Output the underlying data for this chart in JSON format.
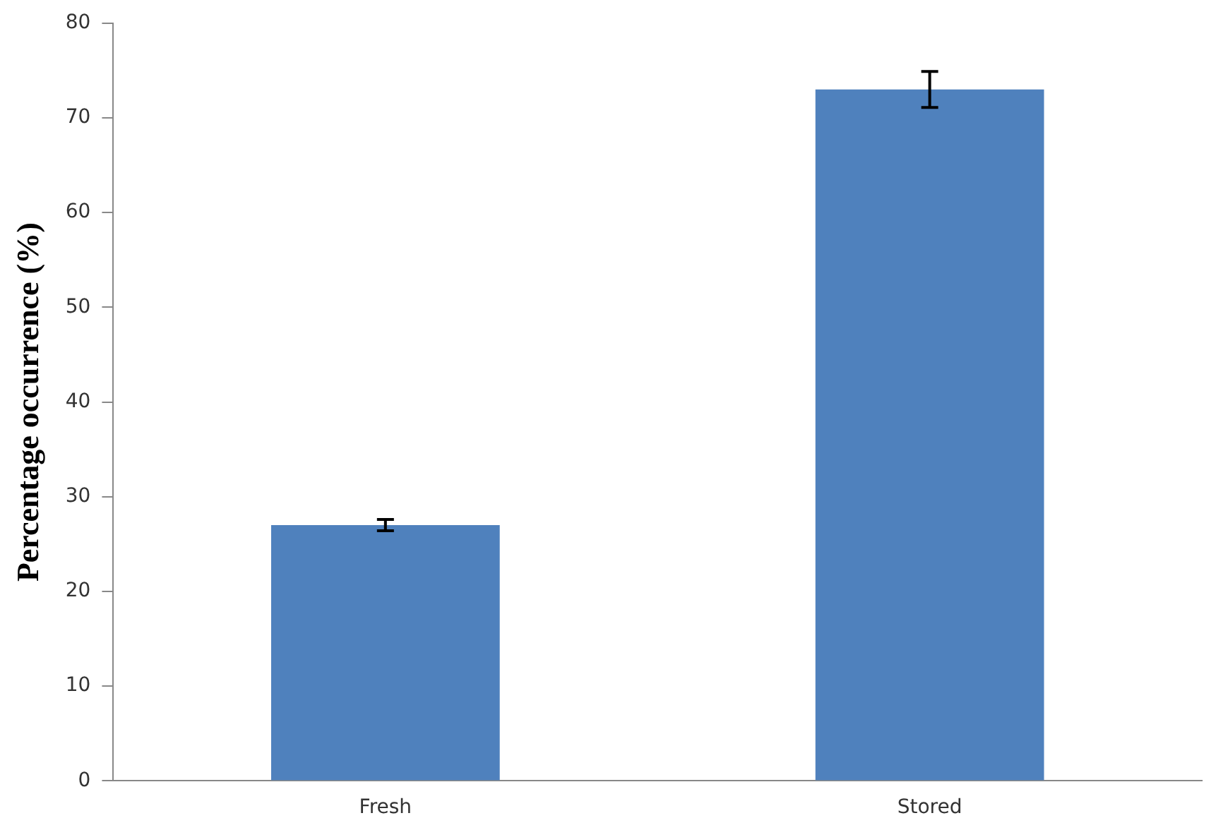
{
  "chart_data": {
    "type": "bar",
    "ylabel": "Percentage occurrence (%)",
    "categories": [
      "Fresh",
      "Stored"
    ],
    "values": [
      27,
      73
    ],
    "errors": [
      0.6,
      1.9
    ],
    "color": "#4f81bd",
    "ylim": [
      0,
      80
    ],
    "yticks": [
      0,
      10,
      20,
      30,
      40,
      50,
      60,
      70,
      80
    ],
    "grid": false,
    "legend": false
  }
}
